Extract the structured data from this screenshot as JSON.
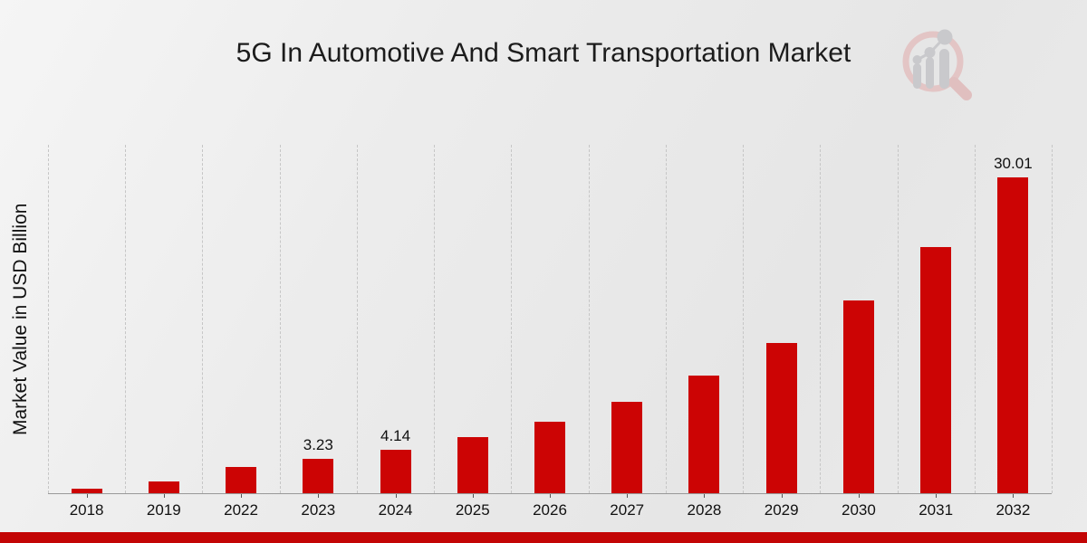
{
  "title": "5G In Automotive And Smart Transportation Market",
  "ylabel": "Market Value in USD Billion",
  "logo": {
    "name": "market-research-magnifier-logo",
    "ring_color": "#e3c5c5",
    "bars_color": "#c9c9cc"
  },
  "footer": {
    "strip_color": "#c30505"
  },
  "chart_data": {
    "type": "bar",
    "title": "5G In Automotive And Smart Transportation Market",
    "xlabel": "",
    "ylabel": "Market Value in USD Billion",
    "categories": [
      "2018",
      "2019",
      "2022",
      "2023",
      "2024",
      "2025",
      "2026",
      "2027",
      "2028",
      "2029",
      "2030",
      "2031",
      "2032"
    ],
    "values": [
      0.45,
      1.15,
      2.5,
      3.23,
      4.14,
      5.3,
      6.8,
      8.7,
      11.2,
      14.3,
      18.3,
      23.4,
      30.01
    ],
    "bar_labels": [
      "",
      "",
      "",
      "3.23",
      "4.14",
      "",
      "",
      "",
      "",
      "",
      "",
      "",
      "30.01"
    ],
    "bar_color": "#cc0404",
    "ylim": [
      0,
      33.1
    ],
    "grid": "vertical-dashed",
    "legend": "none"
  }
}
